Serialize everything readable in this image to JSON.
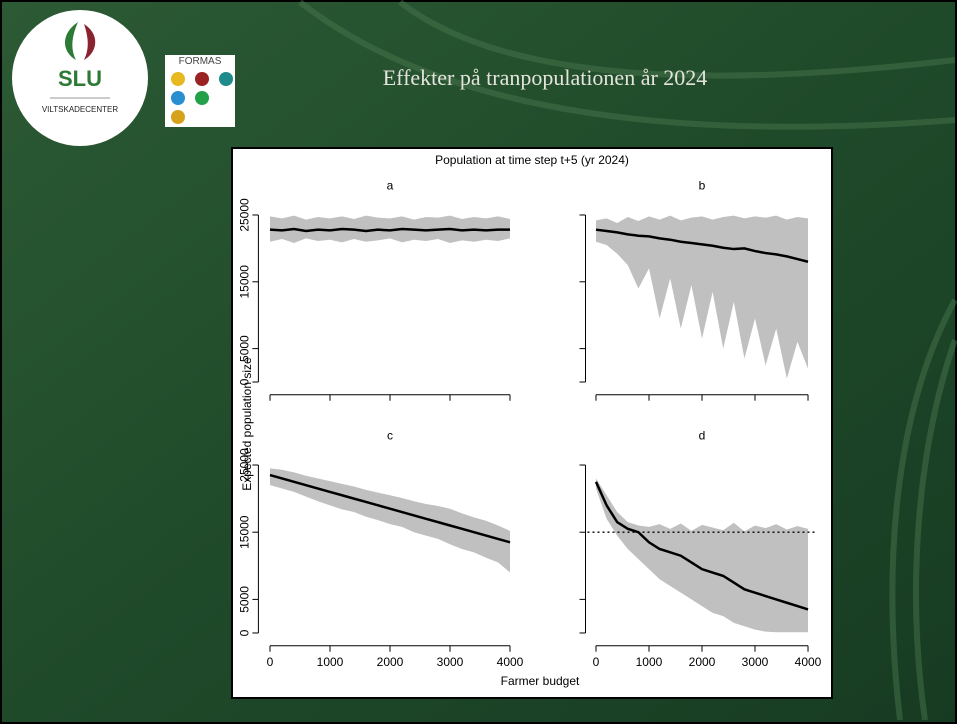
{
  "slide": {
    "title": "Effekter på tranpopulationen år 2024",
    "logo_slu": "SLU",
    "logo_slu_sub": "VILTSKADECENTER",
    "logo_formas": "FORMAS"
  },
  "figure": {
    "title": "Population at time step t+5 (yr 2024)",
    "xlabel": "Farmer budget",
    "ylabel": "Expected population size"
  },
  "chart_data": [
    {
      "type": "line",
      "title": "a",
      "x": [
        0,
        200,
        400,
        600,
        800,
        1000,
        1200,
        1400,
        1600,
        1800,
        2000,
        2200,
        2400,
        2600,
        2800,
        3000,
        3200,
        3400,
        3600,
        3800,
        4000
      ],
      "band": {
        "color": "#c0c0c0",
        "upper": [
          24800,
          24500,
          24900,
          24300,
          24700,
          24500,
          24800,
          24400,
          24900,
          24600,
          24500,
          24800,
          24300,
          24700,
          24600,
          24900,
          24400,
          24700,
          24500,
          24800,
          24400
        ],
        "lower": [
          21000,
          21400,
          20800,
          21500,
          21100,
          21300,
          20900,
          21400,
          21000,
          21200,
          21500,
          20900,
          21300,
          21100,
          21400,
          20800,
          21200,
          21000,
          21300,
          21100,
          21500
        ]
      },
      "series": [
        {
          "color": "#000000",
          "values": [
            22800,
            22700,
            22900,
            22600,
            22800,
            22700,
            22900,
            22800,
            22600,
            22800,
            22700,
            22900,
            22800,
            22700,
            22800,
            22900,
            22700,
            22800,
            22700,
            22800,
            22800
          ]
        }
      ],
      "xlim": [
        -160,
        4160
      ],
      "ylim": [
        -1000,
        26000
      ],
      "xticks": [
        0,
        1000,
        2000,
        3000,
        4000
      ],
      "yticks": [
        0,
        5000,
        15000,
        25000
      ]
    },
    {
      "type": "line",
      "title": "b",
      "x": [
        0,
        200,
        400,
        600,
        800,
        1000,
        1200,
        1400,
        1600,
        1800,
        2000,
        2200,
        2400,
        2600,
        2800,
        3000,
        3200,
        3400,
        3600,
        3800,
        4000
      ],
      "band": {
        "color": "#c0c0c0",
        "upper": [
          24200,
          24500,
          23800,
          24700,
          24100,
          24800,
          24300,
          24900,
          24200,
          24600,
          24800,
          24300,
          24700,
          24900,
          24500,
          24800,
          24600,
          24900,
          24300,
          24700,
          24500
        ],
        "lower": [
          21000,
          20500,
          19200,
          17500,
          14000,
          17000,
          9500,
          15500,
          8000,
          14500,
          6500,
          13500,
          5000,
          12000,
          3500,
          9500,
          2500,
          8000,
          500,
          6000,
          2000
        ]
      },
      "series": [
        {
          "color": "#000000",
          "values": [
            22800,
            22600,
            22400,
            22100,
            21900,
            21800,
            21500,
            21300,
            21000,
            20800,
            20600,
            20400,
            20100,
            19900,
            20000,
            19600,
            19300,
            19100,
            18800,
            18400,
            18000
          ]
        }
      ],
      "xlim": [
        -160,
        4160
      ],
      "ylim": [
        -1000,
        26000
      ],
      "xticks": [
        0,
        1000,
        2000,
        3000,
        4000
      ],
      "yticks": [
        0,
        5000,
        15000,
        25000
      ]
    },
    {
      "type": "line",
      "title": "c",
      "x": [
        0,
        200,
        400,
        600,
        800,
        1000,
        1200,
        1400,
        1600,
        1800,
        2000,
        2200,
        2400,
        2600,
        2800,
        3000,
        3200,
        3400,
        3600,
        3800,
        4000
      ],
      "band": {
        "color": "#c0c0c0",
        "upper": [
          24500,
          24300,
          23900,
          23400,
          23000,
          22600,
          22200,
          21800,
          21300,
          20900,
          20500,
          20100,
          19600,
          19200,
          18900,
          18500,
          17800,
          17200,
          16700,
          16000,
          15200
        ],
        "lower": [
          22000,
          21500,
          21000,
          20300,
          19600,
          19000,
          18400,
          18000,
          17300,
          16800,
          16200,
          15800,
          15000,
          14500,
          14000,
          13200,
          12500,
          12000,
          11200,
          10500,
          9000
        ]
      },
      "series": [
        {
          "color": "#000000",
          "values": [
            23500,
            23000,
            22500,
            22000,
            21500,
            21000,
            20500,
            20000,
            19500,
            19000,
            18500,
            18000,
            17500,
            17000,
            16500,
            16000,
            15500,
            15000,
            14500,
            14000,
            13500
          ]
        }
      ],
      "xlim": [
        -160,
        4160
      ],
      "ylim": [
        -1000,
        26000
      ],
      "xticks": [
        0,
        1000,
        2000,
        3000,
        4000
      ],
      "yticks": [
        0,
        5000,
        15000,
        25000
      ]
    },
    {
      "type": "line",
      "title": "d",
      "x": [
        0,
        200,
        400,
        600,
        800,
        1000,
        1200,
        1400,
        1600,
        1800,
        2000,
        2200,
        2400,
        2600,
        2800,
        3000,
        3200,
        3400,
        3600,
        3800,
        4000
      ],
      "band": {
        "color": "#c0c0c0",
        "upper": [
          23000,
          20500,
          18000,
          16500,
          16000,
          15800,
          16200,
          15500,
          16300,
          15200,
          16100,
          15700,
          15300,
          16400,
          15100,
          16000,
          15600,
          16200,
          15400,
          15900,
          15500
        ],
        "lower": [
          21500,
          17000,
          14500,
          12500,
          11000,
          9500,
          8000,
          7000,
          6000,
          5000,
          4000,
          3000,
          2500,
          1500,
          1000,
          500,
          200,
          100,
          100,
          100,
          100
        ]
      },
      "series": [
        {
          "color": "#000000",
          "values": [
            22500,
            19000,
            16500,
            15500,
            15000,
            13500,
            12500,
            12000,
            11500,
            10500,
            9500,
            9000,
            8500,
            7500,
            6500,
            6000,
            5500,
            5000,
            4500,
            4000,
            3500
          ]
        }
      ],
      "hline": 15000,
      "xlim": [
        -160,
        4160
      ],
      "ylim": [
        -1000,
        26000
      ],
      "xticks": [
        0,
        1000,
        2000,
        3000,
        4000
      ],
      "yticks": [
        0,
        5000,
        15000,
        25000
      ]
    }
  ]
}
